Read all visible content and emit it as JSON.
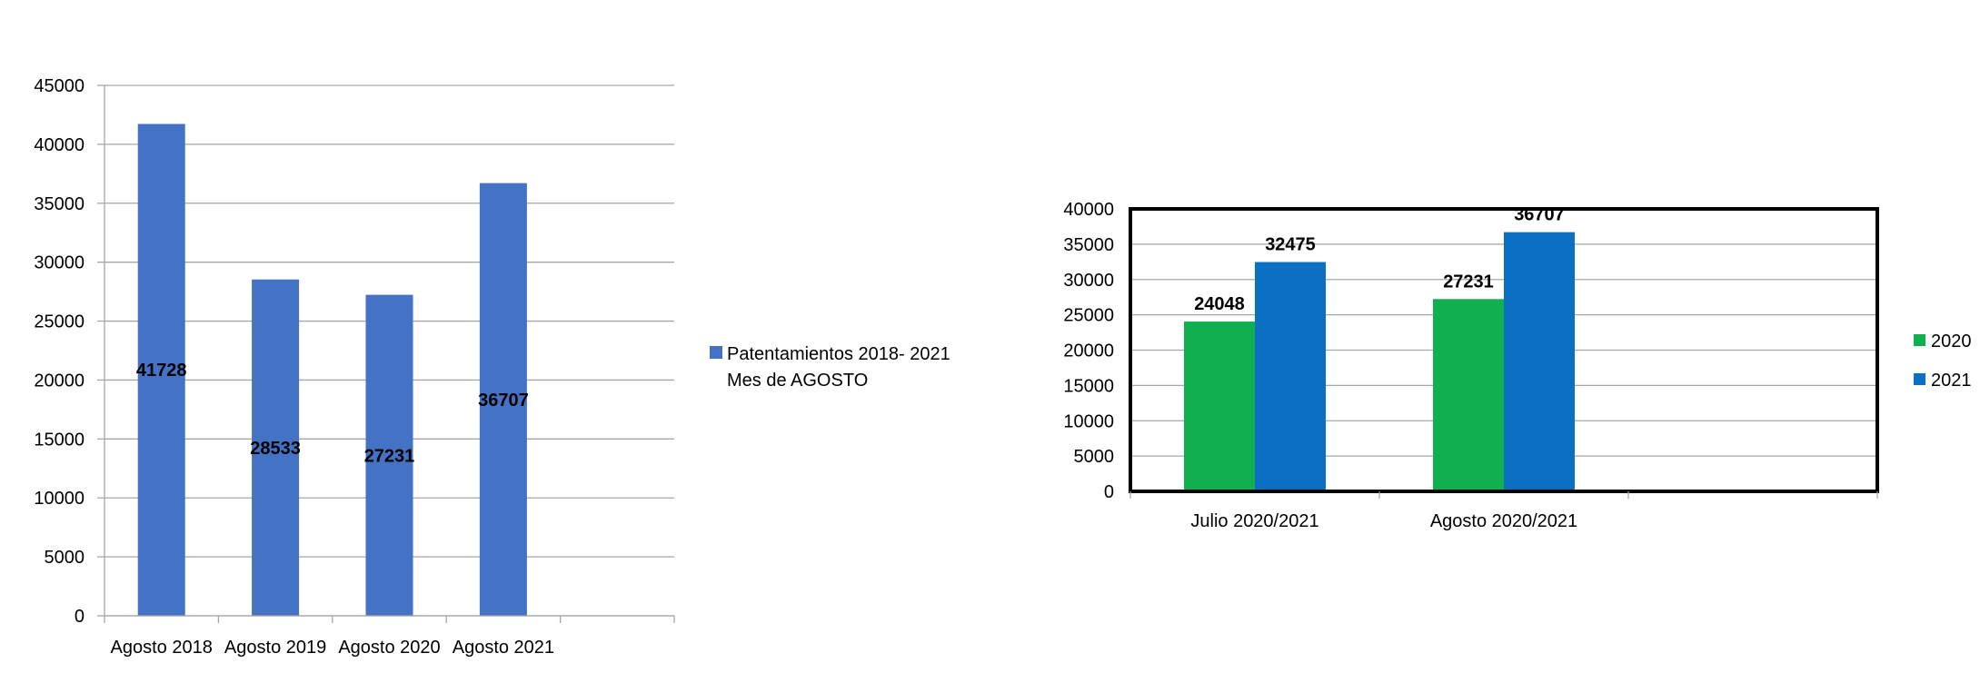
{
  "chart_data": [
    {
      "type": "bar",
      "categories": [
        "Agosto 2018",
        "Agosto 2019",
        "Agosto 2020",
        "Agosto 2021"
      ],
      "series": [
        {
          "name": "Patentamientos  2018- 2021 Mes de  AGOSTO",
          "values": [
            41728,
            28533,
            27231,
            36707
          ],
          "color": "#4472C4"
        }
      ],
      "yticks": [
        0,
        5000,
        10000,
        15000,
        20000,
        25000,
        30000,
        35000,
        40000,
        45000
      ],
      "ylim": [
        0,
        45000
      ],
      "grid": true,
      "legend_position": "right",
      "legend_lines": [
        "Patentamientos  2018- 2021",
        "Mes de  AGOSTO"
      ],
      "data_labels": [
        "41728",
        "28533",
        "27231",
        "36707"
      ]
    },
    {
      "type": "bar",
      "categories": [
        "Julio 2020/2021",
        "Agosto 2020/2021"
      ],
      "series": [
        {
          "name": "2020",
          "values": [
            24048,
            27231
          ],
          "color": "#10B050"
        },
        {
          "name": "2021",
          "values": [
            32475,
            36707
          ],
          "color": "#0B6FC4"
        }
      ],
      "yticks": [
        0,
        5000,
        10000,
        15000,
        20000,
        25000,
        30000,
        35000,
        40000
      ],
      "ylim": [
        0,
        40000
      ],
      "grid": true,
      "legend_position": "right",
      "data_labels": [
        [
          "24048",
          "27231"
        ],
        [
          "32475",
          "36707"
        ]
      ]
    }
  ]
}
